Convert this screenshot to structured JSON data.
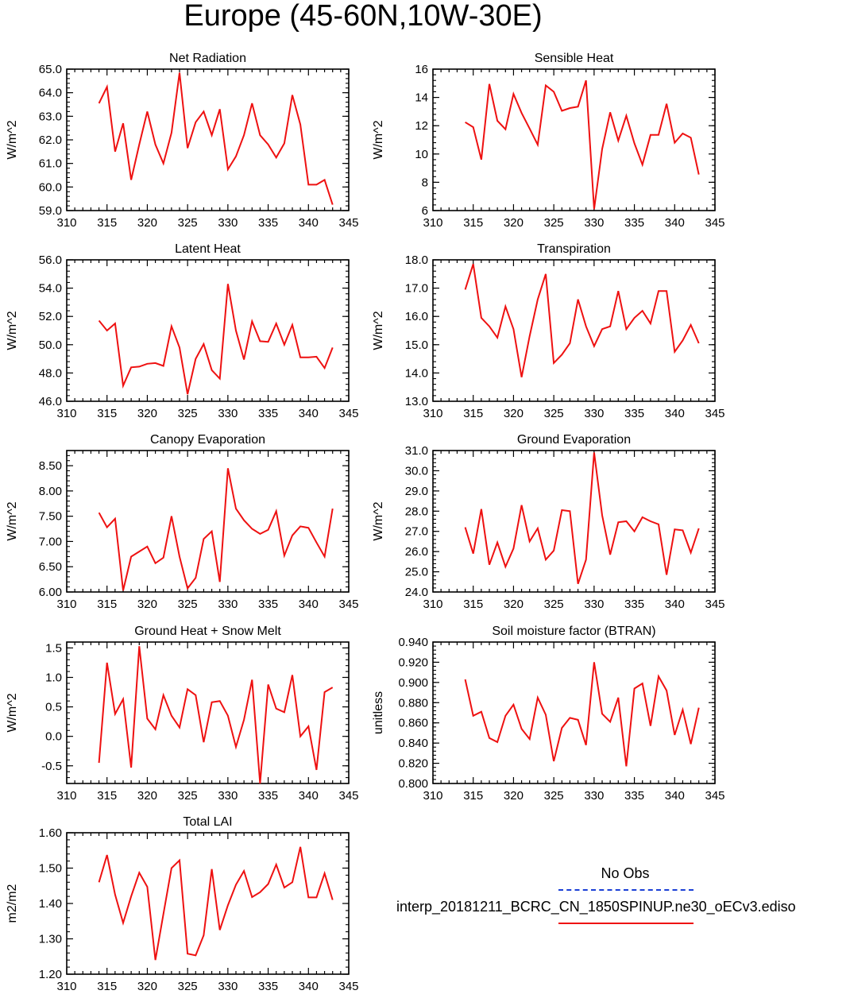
{
  "title": "Europe (45-60N,10W-30E)",
  "colors": {
    "series": "#ee1111",
    "axis": "#000000",
    "obs": "#1a3fd6"
  },
  "legend": {
    "obs_label": "No Obs",
    "model_label": "interp_20181211_BCRC_CN_1850SPINUP.ne30_oECv3.ediso"
  },
  "chart_data": [
    {
      "type": "line",
      "title": "Net Radiation",
      "ylabel": "W/m^2",
      "xlim": [
        310,
        345
      ],
      "ylim": [
        59,
        65
      ],
      "xticks": [
        "310",
        "315",
        "320",
        "325",
        "330",
        "335",
        "340",
        "345"
      ],
      "yticks": [
        "59.0",
        "60.0",
        "61.0",
        "62.0",
        "63.0",
        "64.0",
        "65.0"
      ],
      "series": [
        {
          "x_start": 314,
          "values": [
            63.55,
            64.25,
            61.5,
            62.7,
            60.3,
            61.8,
            63.2,
            61.8,
            61.0,
            62.3,
            64.85,
            61.65,
            62.75,
            63.2,
            62.2,
            63.3,
            60.75,
            61.3,
            62.2,
            63.55,
            62.2,
            61.8,
            61.25,
            61.85,
            63.9,
            62.65,
            60.1,
            60.1,
            60.3,
            59.25
          ]
        }
      ]
    },
    {
      "type": "line",
      "title": "Sensible Heat",
      "ylabel": "W/m^2",
      "xlim": [
        310,
        345
      ],
      "ylim": [
        6,
        16
      ],
      "xticks": [
        "310",
        "315",
        "320",
        "325",
        "330",
        "335",
        "340",
        "345"
      ],
      "yticks": [
        "6",
        "8",
        "10",
        "12",
        "14",
        "16"
      ],
      "series": [
        {
          "x_start": 314,
          "values": [
            12.25,
            11.9,
            9.6,
            14.95,
            12.35,
            11.75,
            14.25,
            12.9,
            11.8,
            10.65,
            14.85,
            14.4,
            13.05,
            13.25,
            13.35,
            15.2,
            6.1,
            10.35,
            12.95,
            10.95,
            12.7,
            10.75,
            9.25,
            11.35,
            11.35,
            13.55,
            10.8,
            11.45,
            11.15,
            8.55
          ]
        }
      ]
    },
    {
      "type": "line",
      "title": "Latent Heat",
      "ylabel": "W/m^2",
      "xlim": [
        310,
        345
      ],
      "ylim": [
        46,
        56
      ],
      "xticks": [
        "310",
        "315",
        "320",
        "325",
        "330",
        "335",
        "340",
        "345"
      ],
      "yticks": [
        "46.0",
        "48.0",
        "50.0",
        "52.0",
        "54.0",
        "56.0"
      ],
      "series": [
        {
          "x_start": 314,
          "values": [
            51.7,
            51.0,
            51.5,
            47.1,
            48.4,
            48.45,
            48.65,
            48.7,
            48.5,
            51.3,
            49.8,
            46.5,
            49.0,
            50.05,
            48.2,
            47.6,
            54.3,
            51.0,
            48.95,
            51.65,
            50.25,
            50.2,
            51.5,
            50.0,
            51.4,
            49.1,
            49.1,
            49.15,
            48.35,
            49.8
          ]
        }
      ]
    },
    {
      "type": "line",
      "title": "Transpiration",
      "ylabel": "W/m^2",
      "xlim": [
        310,
        345
      ],
      "ylim": [
        13,
        18
      ],
      "xticks": [
        "310",
        "315",
        "320",
        "325",
        "330",
        "335",
        "340",
        "345"
      ],
      "yticks": [
        "13.0",
        "14.0",
        "15.0",
        "16.0",
        "17.0",
        "18.0"
      ],
      "series": [
        {
          "x_start": 314,
          "values": [
            16.95,
            17.85,
            15.95,
            15.65,
            15.25,
            16.35,
            15.55,
            13.85,
            15.3,
            16.6,
            17.5,
            14.35,
            14.65,
            15.05,
            16.6,
            15.65,
            14.95,
            15.55,
            15.65,
            16.9,
            15.55,
            15.95,
            16.2,
            15.75,
            16.9,
            16.9,
            14.75,
            15.15,
            15.7,
            15.05
          ]
        }
      ]
    },
    {
      "type": "line",
      "title": "Canopy Evaporation",
      "ylabel": "W/m^2",
      "xlim": [
        310,
        345
      ],
      "ylim": [
        6.0,
        8.8
      ],
      "xticks": [
        "310",
        "315",
        "320",
        "325",
        "330",
        "335",
        "340",
        "345"
      ],
      "yticks": [
        "6.00",
        "6.50",
        "7.00",
        "7.50",
        "8.00",
        "8.50"
      ],
      "series": [
        {
          "x_start": 314,
          "values": [
            7.57,
            7.28,
            7.45,
            6.03,
            6.7,
            6.8,
            6.9,
            6.57,
            6.68,
            7.5,
            6.7,
            6.07,
            6.28,
            7.05,
            7.2,
            6.2,
            8.45,
            7.65,
            7.42,
            7.25,
            7.15,
            7.23,
            7.6,
            6.72,
            7.12,
            7.3,
            7.27,
            6.98,
            6.7,
            7.65
          ]
        }
      ]
    },
    {
      "type": "line",
      "title": "Ground Evaporation",
      "ylabel": "W/m^2",
      "xlim": [
        310,
        345
      ],
      "ylim": [
        24,
        31
      ],
      "xticks": [
        "310",
        "315",
        "320",
        "325",
        "330",
        "335",
        "340",
        "345"
      ],
      "yticks": [
        "24.0",
        "25.0",
        "26.0",
        "27.0",
        "28.0",
        "29.0",
        "30.0",
        "31.0"
      ],
      "series": [
        {
          "x_start": 314,
          "values": [
            27.2,
            25.9,
            28.1,
            25.35,
            26.45,
            25.25,
            26.15,
            28.3,
            26.5,
            27.15,
            25.6,
            26.05,
            28.05,
            28.0,
            24.4,
            25.6,
            30.9,
            27.8,
            25.85,
            27.45,
            27.5,
            27.0,
            27.7,
            27.5,
            27.35,
            24.85,
            27.1,
            27.05,
            25.95,
            27.15
          ]
        }
      ]
    },
    {
      "type": "line",
      "title": "Ground Heat + Snow Melt",
      "ylabel": "W/m^2",
      "xlim": [
        310,
        345
      ],
      "ylim": [
        -0.8,
        1.6
      ],
      "xticks": [
        "310",
        "315",
        "320",
        "325",
        "330",
        "335",
        "340",
        "345"
      ],
      "yticks": [
        "-0.5",
        "0.0",
        "0.5",
        "1.0",
        "1.5"
      ],
      "series": [
        {
          "x_start": 314,
          "values": [
            -0.45,
            1.25,
            0.38,
            0.63,
            -0.53,
            1.53,
            0.3,
            0.12,
            0.7,
            0.35,
            0.15,
            0.8,
            0.7,
            -0.1,
            0.58,
            0.6,
            0.35,
            -0.18,
            0.28,
            0.96,
            -0.8,
            0.88,
            0.47,
            0.41,
            1.04,
            0.0,
            0.17,
            -0.57,
            0.75,
            0.83
          ]
        }
      ]
    },
    {
      "type": "line",
      "title": "Soil moisture factor (BTRAN)",
      "ylabel": "unitless",
      "xlim": [
        310,
        345
      ],
      "ylim": [
        0.8,
        0.94
      ],
      "xticks": [
        "310",
        "315",
        "320",
        "325",
        "330",
        "335",
        "340",
        "345"
      ],
      "yticks": [
        "0.800",
        "0.820",
        "0.840",
        "0.860",
        "0.880",
        "0.900",
        "0.920",
        "0.940"
      ],
      "series": [
        {
          "x_start": 314,
          "values": [
            0.903,
            0.867,
            0.871,
            0.845,
            0.841,
            0.867,
            0.878,
            0.854,
            0.844,
            0.885,
            0.868,
            0.822,
            0.855,
            0.865,
            0.863,
            0.838,
            0.92,
            0.869,
            0.861,
            0.885,
            0.817,
            0.894,
            0.899,
            0.857,
            0.906,
            0.892,
            0.848,
            0.873,
            0.839,
            0.875
          ]
        }
      ]
    },
    {
      "type": "line",
      "title": "Total LAI",
      "ylabel": "m2/m2",
      "xlim": [
        310,
        345
      ],
      "ylim": [
        1.2,
        1.6
      ],
      "xticks": [
        "310",
        "315",
        "320",
        "325",
        "330",
        "335",
        "340",
        "345"
      ],
      "yticks": [
        "1.20",
        "1.30",
        "1.40",
        "1.50",
        "1.60"
      ],
      "series": [
        {
          "x_start": 314,
          "values": [
            1.46,
            1.537,
            1.425,
            1.345,
            1.42,
            1.487,
            1.447,
            1.24,
            1.37,
            1.5,
            1.522,
            1.258,
            1.253,
            1.31,
            1.497,
            1.325,
            1.395,
            1.453,
            1.492,
            1.418,
            1.432,
            1.455,
            1.51,
            1.445,
            1.46,
            1.56,
            1.417,
            1.417,
            1.485,
            1.41
          ]
        }
      ]
    }
  ]
}
